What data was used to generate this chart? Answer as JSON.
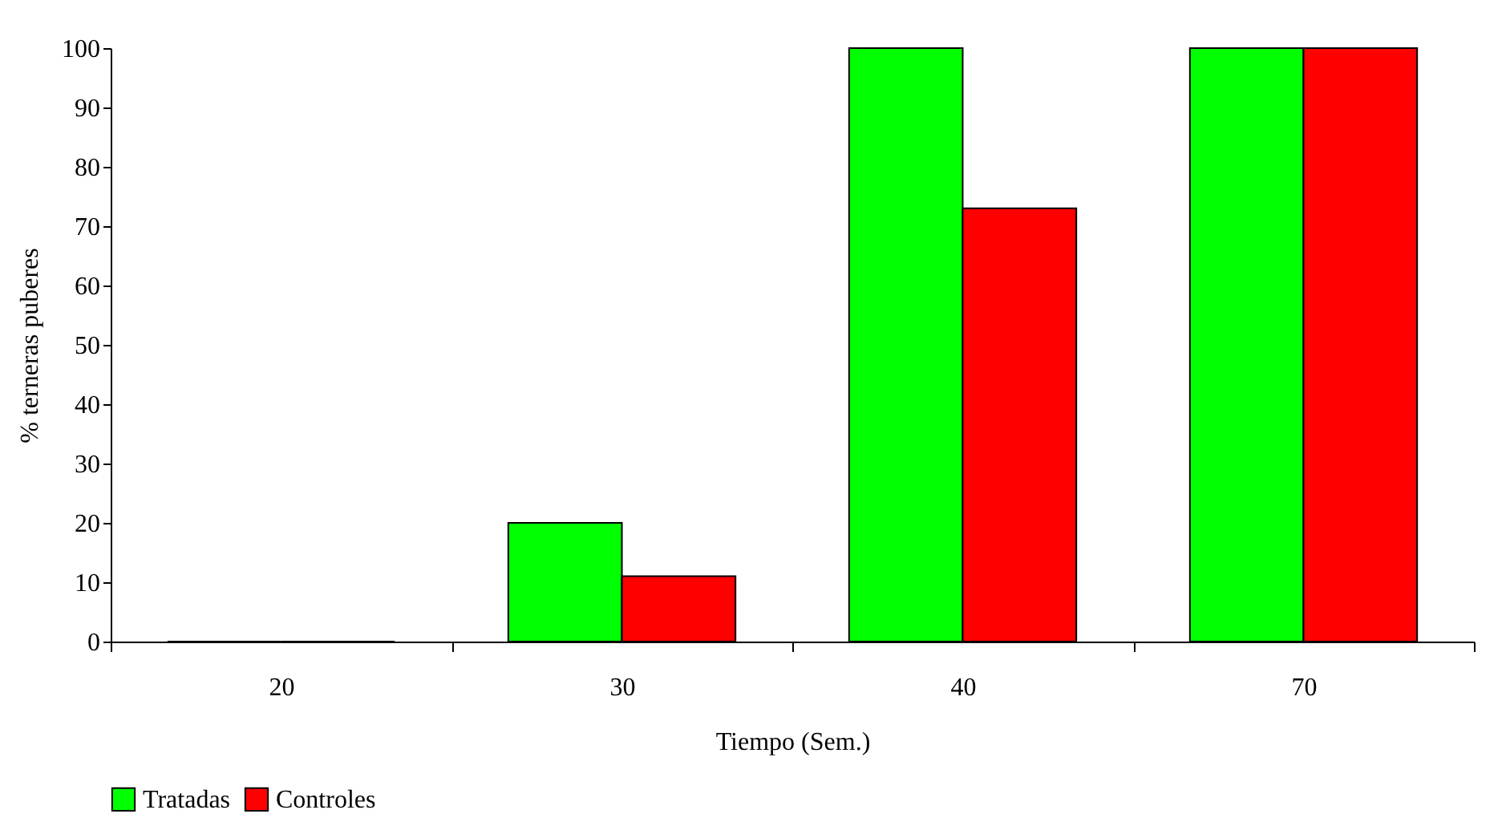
{
  "chart_data": {
    "type": "bar",
    "xlabel": "Tiempo (Sem.)",
    "ylabel": "% terneras puberes",
    "categories": [
      "20",
      "30",
      "40",
      "70"
    ],
    "series": [
      {
        "name": "Tratadas",
        "color": "#00ff00",
        "values": [
          0,
          20,
          100,
          100
        ]
      },
      {
        "name": "Controles",
        "color": "#ff0000",
        "values": [
          0,
          11,
          73,
          100
        ]
      }
    ],
    "ylim": [
      0,
      100
    ],
    "yticks": [
      0,
      10,
      20,
      30,
      40,
      50,
      60,
      70,
      80,
      90,
      100
    ],
    "grid": false,
    "legend": "bottom"
  }
}
